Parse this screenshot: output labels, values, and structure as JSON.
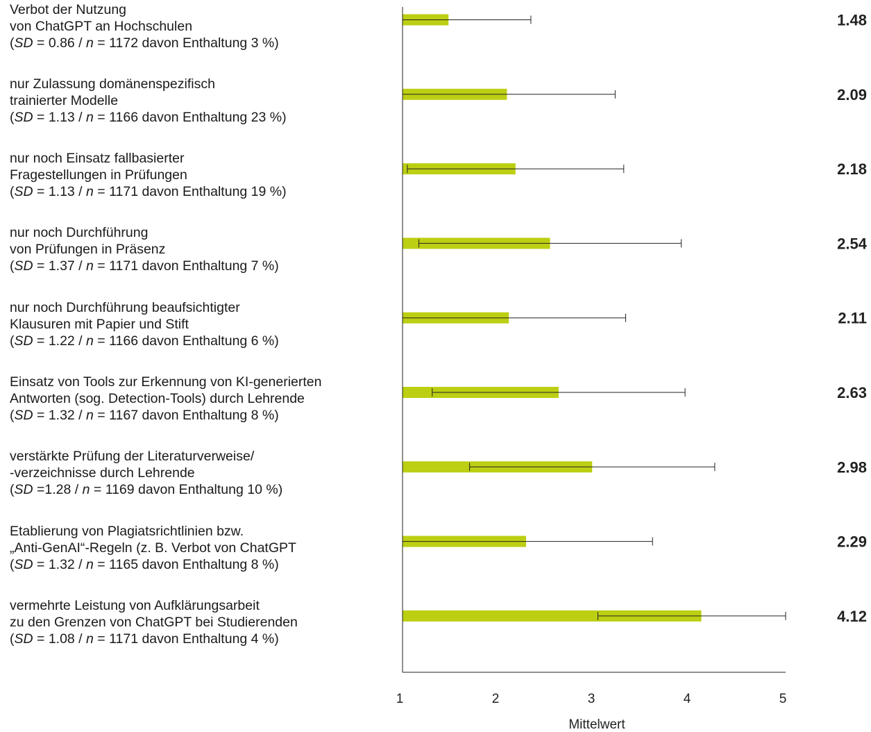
{
  "chart_data": {
    "type": "bar",
    "orientation": "horizontal",
    "xlabel": "Mittelwert",
    "xlim": [
      1,
      5
    ],
    "xticks": [
      "1",
      "2",
      "3",
      "4",
      "5"
    ],
    "bar_color": "#bccf12",
    "error_bar_color": "#222222",
    "categories": [
      {
        "lines": [
          "Verbot der Nutzung",
          "von ChatGPT an Hochschulen"
        ],
        "sd": "0.86",
        "n": "1172",
        "abstention": "3 %",
        "sd_sep": " = "
      },
      {
        "lines": [
          "nur Zulassung domänenspezifisch",
          "trainierter Modelle"
        ],
        "sd": "1.13",
        "n": "1166",
        "abstention": "23 %",
        "sd_sep": " = "
      },
      {
        "lines": [
          "nur noch Einsatz fallbasierter",
          "Fragestellungen in Prüfungen"
        ],
        "sd": "1.13",
        "n": "1171",
        "abstention": "19 %",
        "sd_sep": " = "
      },
      {
        "lines": [
          "nur noch Durchführung",
          "von Prüfungen in Präsenz"
        ],
        "sd": "1.37",
        "n": "1171",
        "abstention": "7 %",
        "sd_sep": " = "
      },
      {
        "lines": [
          "nur noch Durchführung beaufsichtigter",
          "Klausuren mit Papier und Stift"
        ],
        "sd": "1.22",
        "n": "1166",
        "abstention": "6 %",
        "sd_sep": " = "
      },
      {
        "lines": [
          "Einsatz von Tools zur Erkennung von KI-generierten",
          "Antworten (sog. Detection-Tools) durch Lehrende"
        ],
        "sd": "1.32",
        "n": "1167",
        "abstention": "8 %",
        "sd_sep": " = "
      },
      {
        "lines": [
          "verstärkte Prüfung der Literaturverweise/",
          "-verzeichnisse durch Lehrende"
        ],
        "sd": "1.28",
        "n": "1169",
        "abstention": "10 %",
        "sd_sep": " ="
      },
      {
        "lines": [
          "Etablierung von Plagiatsrichtlinien bzw.",
          "„Anti-GenAI“-Regeln (z. B. Verbot von ChatGPT"
        ],
        "sd": "1.32",
        "n": "1165",
        "abstention": "8 %",
        "sd_sep": " = "
      },
      {
        "lines": [
          "vermehrte Leistung von Aufklärungsarbeit",
          "zu den Grenzen von ChatGPT bei Studierenden"
        ],
        "sd": "1.08",
        "n": "1171",
        "abstention": "4 %",
        "sd_sep": " = "
      }
    ],
    "means": [
      1.48,
      2.09,
      2.18,
      2.54,
      2.11,
      2.63,
      2.98,
      2.29,
      4.12
    ],
    "mean_labels": [
      "1.48",
      "2.09",
      "2.18",
      "2.54",
      "2.11",
      "2.63",
      "2.98",
      "2.29",
      "4.12"
    ],
    "error_low": [
      1.0,
      1.0,
      1.05,
      1.17,
      1.0,
      1.31,
      1.7,
      1.0,
      3.04
    ],
    "error_high": [
      2.34,
      3.22,
      3.31,
      3.91,
      3.33,
      3.95,
      4.26,
      3.61,
      5.0
    ]
  }
}
